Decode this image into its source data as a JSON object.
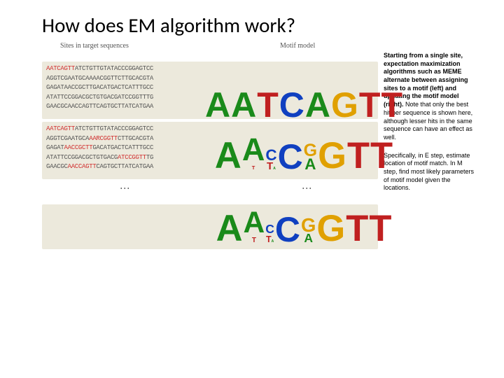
{
  "title": "How does EM algorithm work?",
  "headers": {
    "left": "Sites in target sequences",
    "right": "Motif model"
  },
  "panels": [
    {
      "sequences": [
        {
          "pre": "",
          "motif": "AATCAGTT",
          "post": "ATCTGTTGTATACCCGGAGTCC"
        },
        {
          "pre": "AGGTCGAATGCAAAACGGTTCTTGCACGTA",
          "motif": "",
          "post": ""
        },
        {
          "pre": "GAGATAACCGCTTGACATGACTCATTTGCC",
          "motif": "",
          "post": ""
        },
        {
          "pre": "ATATTCCGGACGCTGTGACGATCCGGTTTG",
          "motif": "",
          "post": ""
        },
        {
          "pre": "GAACGCAACCAGTTCAGTGCTTATCATGAA",
          "motif": "",
          "post": ""
        }
      ],
      "logo": [
        [
          {
            "l": "A",
            "h": 40
          }
        ],
        [
          {
            "l": "A",
            "h": 40
          }
        ],
        [
          {
            "l": "T",
            "h": 40
          }
        ],
        [
          {
            "l": "C",
            "h": 40
          }
        ],
        [
          {
            "l": "A",
            "h": 40
          }
        ],
        [
          {
            "l": "G",
            "h": 40
          }
        ],
        [
          {
            "l": "T",
            "h": 40
          }
        ],
        [
          {
            "l": "T",
            "h": 40
          }
        ]
      ]
    },
    {
      "sequences": [
        {
          "pre": "",
          "motif": "AATCAGTT",
          "post": "ATCTGTTGTATACCCGGAGTCC"
        },
        {
          "pre": "AGGTCGAATGCA",
          "motif": "AARCGGTT",
          "post": "CTTGCACGTA"
        },
        {
          "pre": "GAGAT",
          "motif": "AACCGCTT",
          "post": "GACATGACTCATTTGCC"
        },
        {
          "pre": "ATATTCCGGACGCTGTGACG",
          "motif": "ATCCGGTT",
          "post": "TG"
        },
        {
          "pre": "GAACGC",
          "motif": "AACCAGTT",
          "post": "CAGTGCTTATCATGAA"
        }
      ],
      "logo": [
        [
          {
            "l": "A",
            "h": 42
          }
        ],
        [
          {
            "l": "A",
            "h": 36
          },
          {
            "l": "T",
            "h": 6
          }
        ],
        [
          {
            "l": "C",
            "h": 18
          },
          {
            "l": "T",
            "h": 12
          },
          {
            "l": "A",
            "h": 4
          }
        ],
        [
          {
            "l": "C",
            "h": 40
          }
        ],
        [
          {
            "l": "G",
            "h": 20
          },
          {
            "l": "A",
            "h": 18
          }
        ],
        [
          {
            "l": "G",
            "h": 42
          }
        ],
        [
          {
            "l": "T",
            "h": 42
          }
        ],
        [
          {
            "l": "T",
            "h": 42
          }
        ]
      ]
    }
  ],
  "final_logo": [
    [
      {
        "l": "A",
        "h": 42
      }
    ],
    [
      {
        "l": "A",
        "h": 34
      },
      {
        "l": "T",
        "h": 8
      }
    ],
    [
      {
        "l": "C",
        "h": 14
      },
      {
        "l": "T",
        "h": 10
      },
      {
        "l": "A",
        "h": 4
      }
    ],
    [
      {
        "l": "C",
        "h": 40
      }
    ],
    [
      {
        "l": "G",
        "h": 22
      },
      {
        "l": "A",
        "h": 14
      }
    ],
    [
      {
        "l": "G",
        "h": 42
      }
    ],
    [
      {
        "l": "T",
        "h": 42
      }
    ],
    [
      {
        "l": "T",
        "h": 42
      }
    ]
  ],
  "caption": {
    "para1": "Starting from a single site, expectation maximization algorithms such as MEME alternate between assigning sites to a motif (left) and updating the motif model (right).",
    "para2": "Note that only the best hit per sequence is shown here, although lesser hits in the same sequence can have an effect as well.",
    "para3": "Specifically, in E step, estimate location of motif match. In M step, find most likely parameters of motif model given the locations."
  },
  "colors": {
    "panel_bg": "#ece9dc",
    "A": "#1a8a1a",
    "C": "#1040c0",
    "G": "#e0a000",
    "T": "#c02020",
    "motif_highlight": "#d03030"
  }
}
